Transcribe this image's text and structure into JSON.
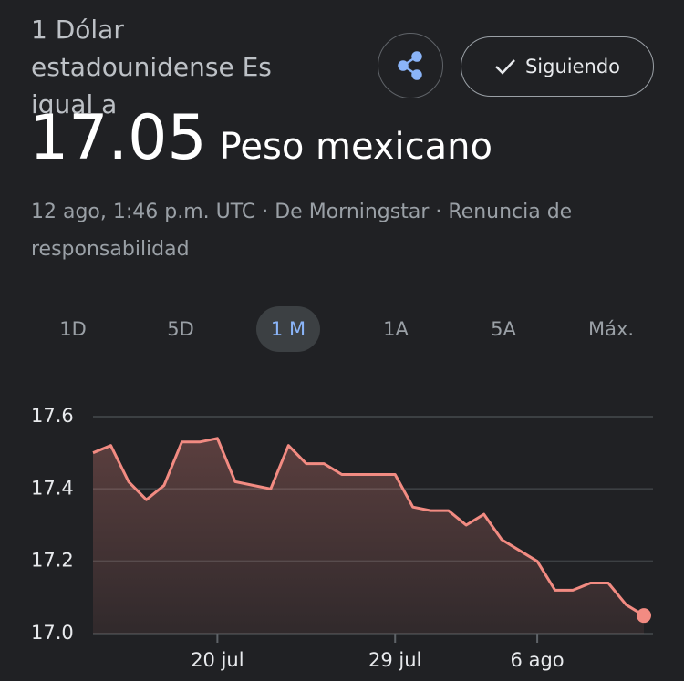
{
  "header": {
    "title_prefix": "1 Dólar estadounidense Es igual a",
    "value": "17.05",
    "currency": "Peso mexicano",
    "follow_button": "Siguiendo",
    "meta": "12 ago, 1:46 p.m. UTC · De Morningstar · Renuncia de responsabilidad"
  },
  "tabs": {
    "items": [
      "1D",
      "5D",
      "1 M",
      "1A",
      "5A",
      "Máx."
    ],
    "selected": 2
  },
  "chart_data": {
    "type": "area",
    "color": "#f28b82",
    "grid": true,
    "categories": [
      null,
      null,
      null,
      null,
      null,
      null,
      null,
      "20 jul",
      null,
      null,
      null,
      null,
      null,
      null,
      null,
      null,
      null,
      "29 jul",
      null,
      null,
      null,
      null,
      null,
      null,
      null,
      "6 ago",
      null,
      null,
      null,
      null,
      null,
      null
    ],
    "values": [
      17.5,
      17.52,
      17.42,
      17.37,
      17.41,
      17.53,
      17.53,
      17.54,
      17.42,
      17.41,
      17.4,
      17.52,
      17.47,
      17.47,
      17.44,
      17.44,
      17.44,
      17.44,
      17.35,
      17.34,
      17.34,
      17.3,
      17.33,
      17.26,
      17.23,
      17.2,
      17.12,
      17.12,
      17.14,
      17.14,
      17.08,
      17.05
    ],
    "ylim": [
      17.0,
      17.6
    ],
    "yticks": [
      {
        "value": 17,
        "label": "17.0"
      },
      17.2,
      17.4,
      17.6
    ]
  }
}
